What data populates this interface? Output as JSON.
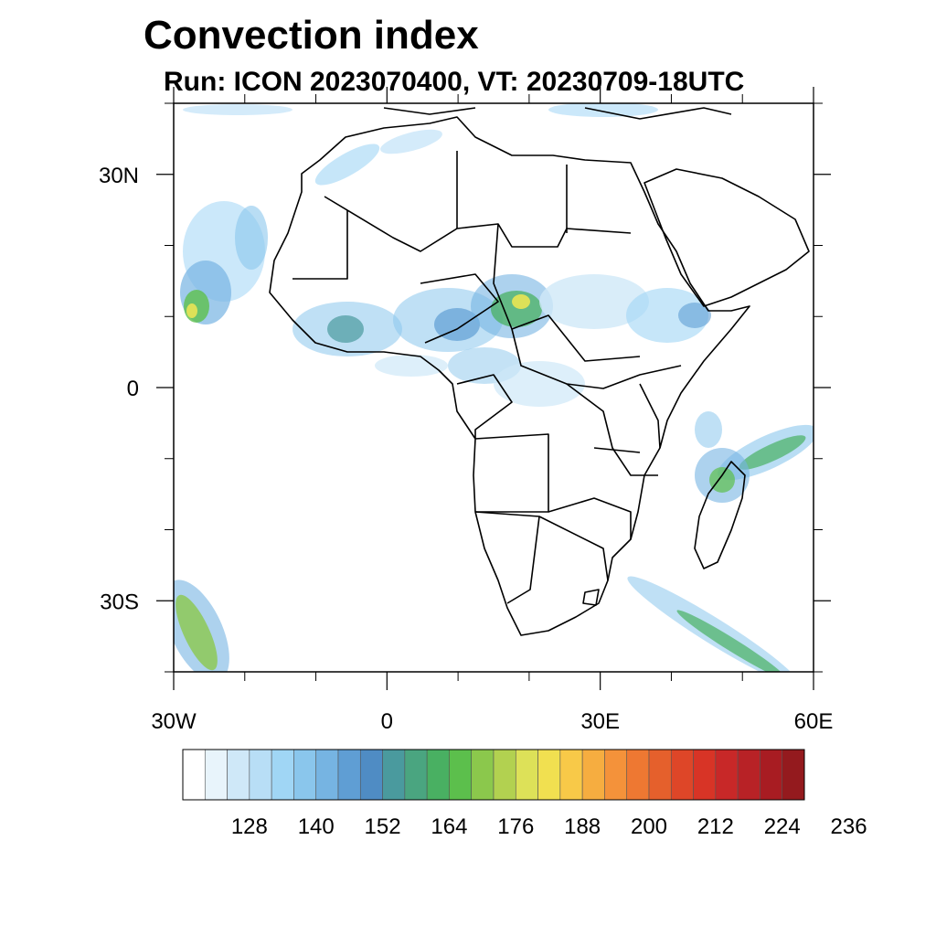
{
  "title": "Convection index",
  "subtitle": "Run: ICON 2023070400,  VT: 20230709-18UTC",
  "map": {
    "lon_range": [
      -30,
      60
    ],
    "lat_range": [
      -40,
      40
    ],
    "lat_ticks": [
      {
        "lat": 30,
        "label": "30N"
      },
      {
        "lat": 0,
        "label": "0"
      },
      {
        "lat": -30,
        "label": "30S"
      }
    ],
    "lon_ticks": [
      {
        "lon": -30,
        "label": "30W"
      },
      {
        "lon": 0,
        "label": "0"
      },
      {
        "lon": 30,
        "label": "30E"
      },
      {
        "lon": 60,
        "label": "60E"
      }
    ],
    "minor_lat_ticks": [
      40,
      20,
      10,
      -10,
      -20,
      -40
    ],
    "minor_lon_ticks": [
      -20,
      -10,
      10,
      20,
      40,
      50
    ]
  },
  "colorbar": {
    "colors": [
      "#ffffff",
      "#e8f4fb",
      "#cfe8f8",
      "#b8def6",
      "#a0d6f5",
      "#8ac6ec",
      "#76b4e2",
      "#5f9ed4",
      "#4f8cc4",
      "#4a9a9e",
      "#4aa580",
      "#49b062",
      "#5cbf4c",
      "#8bc84c",
      "#b2d150",
      "#dde158",
      "#f1e050",
      "#f8c948",
      "#f6ad40",
      "#f4923a",
      "#ee7832",
      "#e5602c",
      "#de4628",
      "#d83426",
      "#c82828",
      "#b82226",
      "#a81c22",
      "#941a1e"
    ],
    "labels": [
      "128",
      "140",
      "152",
      "164",
      "176",
      "188",
      "200",
      "212",
      "224",
      "236"
    ]
  }
}
